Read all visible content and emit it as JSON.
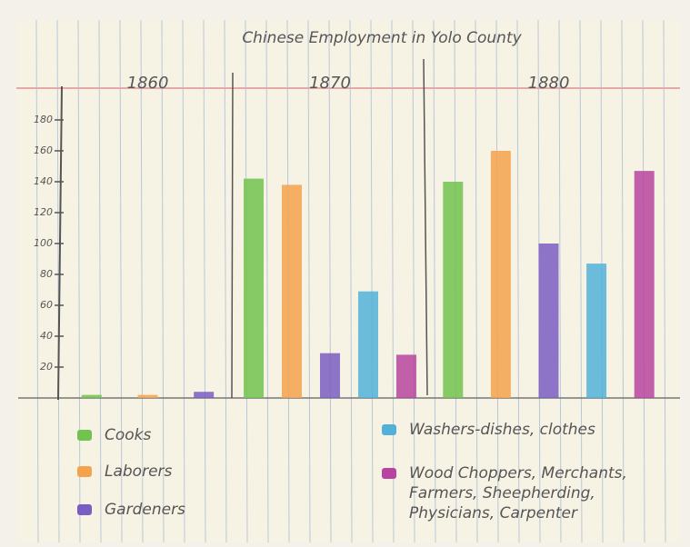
{
  "chart_data": {
    "type": "bar",
    "title": "Chinese Employment in Yolo County",
    "categories": [
      "1860",
      "1870",
      "1880"
    ],
    "series": [
      {
        "name": "Cooks",
        "color": "#72c24f",
        "values": [
          2,
          142,
          140
        ]
      },
      {
        "name": "Laborers",
        "color": "#f4a24e",
        "values": [
          2,
          138,
          160
        ]
      },
      {
        "name": "Gardeners",
        "color": "#7a5dc2",
        "values": [
          4,
          29,
          100
        ]
      },
      {
        "name": "Washers-dishes, clothes",
        "color": "#52b1d9",
        "values": [
          null,
          69,
          87
        ]
      },
      {
        "name": "Wood Choppers, Merchants, Farmers, Sheepherding, Physicians, Carpenter",
        "color": "#b8449f",
        "values": [
          null,
          28,
          147
        ]
      }
    ],
    "ylim": [
      0,
      180
    ],
    "yticks": [
      20,
      40,
      60,
      80,
      100,
      120,
      140,
      160,
      180
    ]
  }
}
